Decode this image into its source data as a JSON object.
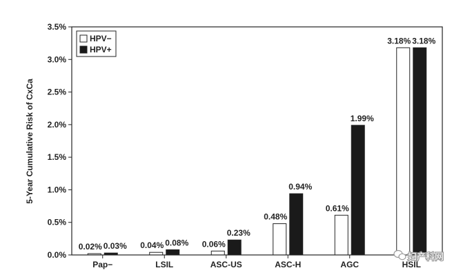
{
  "chart_data": {
    "type": "bar",
    "categories": [
      "Pap−",
      "LSIL",
      "ASC-US",
      "ASC-H",
      "AGC",
      "HSIL"
    ],
    "series": [
      {
        "name": "HPV−",
        "values": [
          0.02,
          0.04,
          0.06,
          0.48,
          0.61,
          3.18
        ],
        "labels": [
          "0.02%",
          "0.04%",
          "0.06%",
          "0.48%",
          "0.61%",
          "3.18%"
        ],
        "color": "#ffffff"
      },
      {
        "name": "HPV+",
        "values": [
          0.03,
          0.08,
          0.23,
          0.94,
          1.99,
          3.18
        ],
        "labels": [
          "0.03%",
          "0.08%",
          "0.23%",
          "0.94%",
          "1.99%",
          "3.18%"
        ],
        "color": "#1a1a1a"
      }
    ],
    "title": "",
    "xlabel": "",
    "ylabel": "5-Year Cumulative Risk of CxCa",
    "ylim": [
      0,
      3.5
    ],
    "yticks": [
      "0.0%",
      "0.5%",
      "1.0%",
      "1.5%",
      "2.0%",
      "2.5%",
      "3.0%",
      "3.5%"
    ],
    "grid": false,
    "legend_position": "top-left"
  },
  "watermark": {
    "text": "妇产科网",
    "icon": "wechat-icon"
  }
}
